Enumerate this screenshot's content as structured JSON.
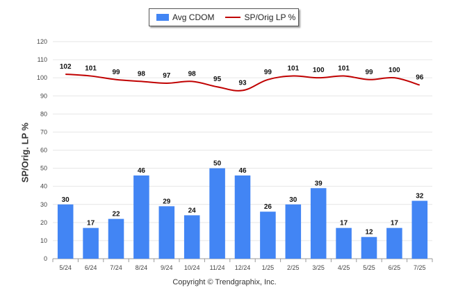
{
  "chart_data": {
    "type": "bar",
    "categories": [
      "5/24",
      "6/24",
      "7/24",
      "8/24",
      "9/24",
      "10/24",
      "11/24",
      "12/24",
      "1/25",
      "2/25",
      "3/25",
      "4/25",
      "5/25",
      "6/25",
      "7/25"
    ],
    "series": [
      {
        "name": "Avg CDOM",
        "kind": "bar",
        "color": "#4285f4",
        "values": [
          30,
          17,
          22,
          46,
          29,
          24,
          50,
          46,
          26,
          30,
          39,
          17,
          12,
          17,
          32
        ]
      },
      {
        "name": "SP/Orig LP %",
        "kind": "line",
        "color": "#c00000",
        "values": [
          102,
          101,
          99,
          98,
          97,
          98,
          95,
          93,
          99,
          101,
          100,
          101,
          99,
          100,
          96
        ]
      }
    ],
    "ylabel": "SP/Orig. LP %",
    "ylim": [
      0,
      120
    ],
    "yticks": [
      0,
      10,
      20,
      30,
      40,
      50,
      60,
      70,
      80,
      90,
      100,
      110,
      120
    ],
    "grid": true,
    "legend_position": "top-center"
  },
  "legend": {
    "bar_label": "Avg CDOM",
    "line_label": "SP/Orig LP %"
  },
  "footer": {
    "copyright": "Copyright © Trendgraphix, Inc."
  }
}
